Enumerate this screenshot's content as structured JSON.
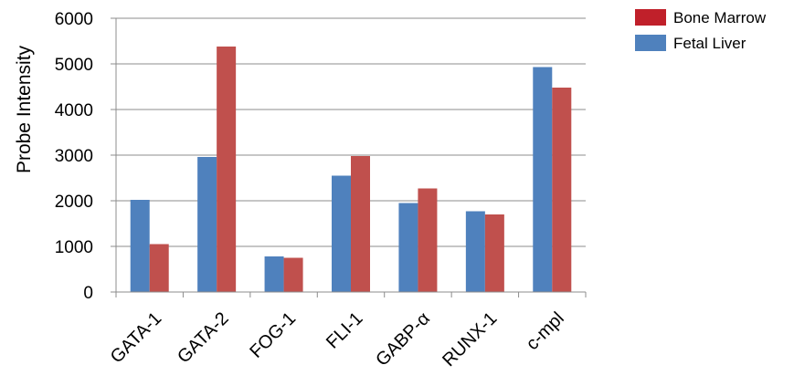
{
  "chart_data": {
    "type": "bar",
    "title": "",
    "xlabel": "",
    "ylabel": "Probe Intensity",
    "ylim": [
      0,
      6000
    ],
    "yticks": [
      0,
      1000,
      2000,
      3000,
      4000,
      5000,
      6000
    ],
    "ytick_labels": [
      "0",
      "1000",
      "2000",
      "3000",
      "4000",
      "5000",
      "6000"
    ],
    "categories": [
      "GATA-1",
      "GATA-2",
      "FOG-1",
      "FLI-1",
      "GABP-α",
      "RUNX-1",
      "c-mpl"
    ],
    "series": [
      {
        "name": "Fetal Liver",
        "color": "#4f81bd",
        "values": [
          2020,
          2960,
          780,
          2550,
          1950,
          1770,
          4930
        ]
      },
      {
        "name": "Bone Marrow",
        "color": "#c0504d",
        "values": [
          1050,
          5380,
          750,
          2980,
          2270,
          1700,
          4480
        ]
      }
    ],
    "grid": true,
    "legend": {
      "placement": "top-right",
      "entries": [
        {
          "label": "Bone Marrow",
          "color": "#c0202a"
        },
        {
          "label": "Fetal Liver",
          "color": "#4f81bd"
        }
      ]
    }
  }
}
